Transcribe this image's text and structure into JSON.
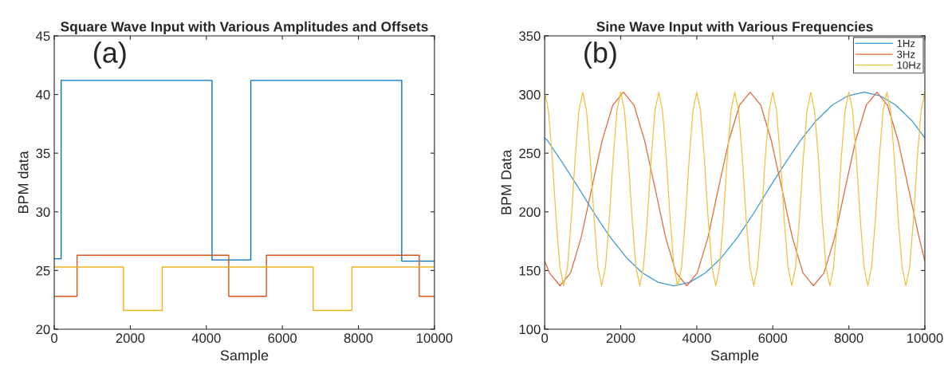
{
  "chart_data": [
    {
      "type": "line",
      "title": "Square Wave Input with Various Amplitudes and Offsets",
      "xlabel": "Sample",
      "ylabel": "BPM data",
      "annotations": [
        "(a)"
      ],
      "xlim": [
        0,
        10000
      ],
      "xticks": [
        0,
        2000,
        4000,
        6000,
        8000,
        10000
      ],
      "ylim": [
        20,
        45
      ],
      "yticks": [
        20,
        25,
        30,
        35,
        40,
        45
      ],
      "grid": false,
      "legend": false,
      "series": [
        {
          "color": "#0072bd",
          "x": [
            0,
            180,
            180,
            4150,
            4150,
            5170,
            5170,
            9140,
            9140,
            10000
          ],
          "values": [
            26.0,
            26.0,
            41.2,
            41.2,
            25.9,
            25.9,
            41.2,
            41.2,
            25.8,
            25.8
          ]
        },
        {
          "color": "#d95319",
          "x": [
            0,
            600,
            600,
            4590,
            4590,
            5580,
            5580,
            9600,
            9600,
            10000
          ],
          "values": [
            22.8,
            22.8,
            26.3,
            26.3,
            22.8,
            22.8,
            26.3,
            26.3,
            22.8,
            22.8
          ]
        },
        {
          "color": "#edb120",
          "x": [
            0,
            1820,
            1820,
            2840,
            2840,
            6810,
            6810,
            7830,
            7830,
            10000
          ],
          "values": [
            25.3,
            25.3,
            21.6,
            21.6,
            25.3,
            25.3,
            21.6,
            21.6,
            25.3,
            25.3
          ]
        }
      ]
    },
    {
      "type": "line",
      "title": "Sine Wave Input with Various Frequencies",
      "xlabel": "Sample",
      "ylabel": "BPM Data",
      "annotations": [
        "(b)"
      ],
      "xlim": [
        0,
        10000
      ],
      "xticks": [
        0,
        2000,
        4000,
        6000,
        8000,
        10000
      ],
      "ylim": [
        100,
        350
      ],
      "yticks": [
        100,
        150,
        200,
        250,
        300,
        350
      ],
      "grid": false,
      "legend": "top right",
      "series": [
        {
          "name": "1Hz",
          "color": "#3d9ad8",
          "x": [
            0,
            67,
            483,
            900,
            1317,
            1733,
            2150,
            2567,
            2983,
            3400,
            3817,
            4233,
            4650,
            5067,
            5483,
            5900,
            6317,
            6733,
            7150,
            7567,
            7983,
            8400,
            8817,
            9233,
            9650,
            10000
          ],
          "values": [
            263,
            261,
            241,
            220,
            198,
            178,
            161,
            148,
            140,
            137,
            140,
            148,
            161,
            178,
            198,
            220,
            241,
            261,
            278,
            291,
            299,
            302,
            299,
            291,
            278,
            263
          ]
        },
        {
          "name": "3Hz",
          "color": "#e0683a",
          "x": [
            0,
            125,
            403,
            681,
            959,
            1237,
            1514,
            1792,
            2070,
            2348,
            2626,
            2904,
            3181,
            3459,
            3737,
            4015,
            4293,
            4570,
            4848,
            5126,
            5404,
            5682,
            5959,
            6237,
            6515,
            6793,
            7070,
            7348,
            7626,
            7904,
            8181,
            8459,
            8737,
            9015,
            9293,
            9570,
            9848,
            10000
          ],
          "values": [
            158,
            148,
            137,
            148,
            178,
            220,
            261,
            291,
            302,
            291,
            261,
            220,
            178,
            148,
            137,
            148,
            178,
            220,
            261,
            291,
            302,
            291,
            261,
            220,
            178,
            148,
            137,
            148,
            178,
            220,
            261,
            291,
            302,
            291,
            261,
            220,
            178,
            158
          ]
        },
        {
          "name": "10Hz",
          "color": "#f0c040",
          "x": [
            0,
            100,
            200,
            300,
            400,
            500,
            600,
            700,
            800,
            900,
            1000,
            1100,
            1200,
            1300,
            1400,
            1500,
            1600,
            1700,
            1800,
            1900,
            2000,
            2100,
            2200,
            2300,
            2400,
            2500,
            2600,
            2700,
            2800,
            2900,
            3000,
            3100,
            3200,
            3300,
            3400,
            3500,
            3600,
            3700,
            3800,
            3900,
            4000,
            4100,
            4200,
            4300,
            4400,
            4500,
            4600,
            4700,
            4800,
            4900,
            5000,
            5100,
            5200,
            5300,
            5400,
            5500,
            5600,
            5700,
            5800,
            5900,
            6000,
            6100,
            6200,
            6300,
            6400,
            6500,
            6600,
            6700,
            6800,
            6900,
            7000,
            7100,
            7200,
            7300,
            7400,
            7500,
            7600,
            7700,
            7800,
            7900,
            8000,
            8100,
            8200,
            8300,
            8400,
            8500,
            8600,
            8700,
            8800,
            8900,
            9000,
            9100,
            9200,
            9300,
            9400,
            9500,
            9600,
            9700,
            9800,
            9900,
            10000
          ],
          "values": [
            302,
            286,
            245,
            194,
            153,
            137,
            153,
            194,
            245,
            286,
            302,
            286,
            245,
            194,
            153,
            137,
            153,
            194,
            245,
            286,
            302,
            286,
            245,
            194,
            153,
            137,
            153,
            194,
            245,
            286,
            302,
            286,
            245,
            194,
            153,
            137,
            153,
            194,
            245,
            286,
            302,
            286,
            245,
            194,
            153,
            137,
            153,
            194,
            245,
            286,
            302,
            286,
            245,
            194,
            153,
            137,
            153,
            194,
            245,
            286,
            302,
            286,
            245,
            194,
            153,
            137,
            153,
            194,
            245,
            286,
            302,
            286,
            245,
            194,
            153,
            137,
            153,
            194,
            245,
            286,
            302,
            286,
            245,
            194,
            153,
            137,
            153,
            194,
            245,
            286,
            302,
            286,
            245,
            194,
            153,
            137,
            153,
            194,
            245,
            286,
            302
          ]
        }
      ]
    }
  ]
}
